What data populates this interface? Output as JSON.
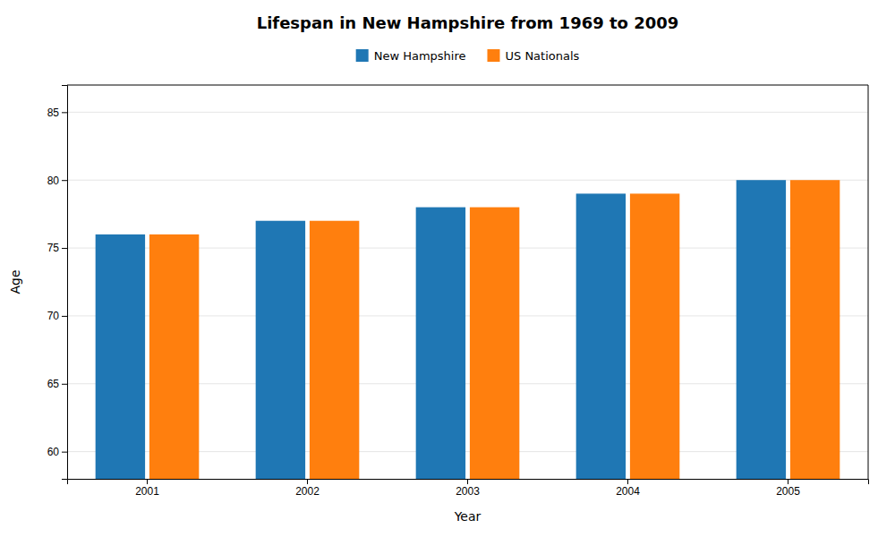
{
  "chart_data": {
    "type": "bar",
    "title": "Lifespan in New Hampshire from 1969 to 2009",
    "xlabel": "Year",
    "ylabel": "Age",
    "categories": [
      "2001",
      "2002",
      "2003",
      "2004",
      "2005"
    ],
    "series": [
      {
        "name": "New Hampshire",
        "values": [
          76,
          77,
          78,
          79,
          80
        ]
      },
      {
        "name": "US Nationals",
        "values": [
          76,
          77,
          78,
          79,
          80
        ]
      }
    ],
    "ylim": [
      58,
      87
    ],
    "yticks": [
      60,
      65,
      70,
      75,
      80,
      85
    ],
    "grid": true,
    "legend": "top"
  }
}
